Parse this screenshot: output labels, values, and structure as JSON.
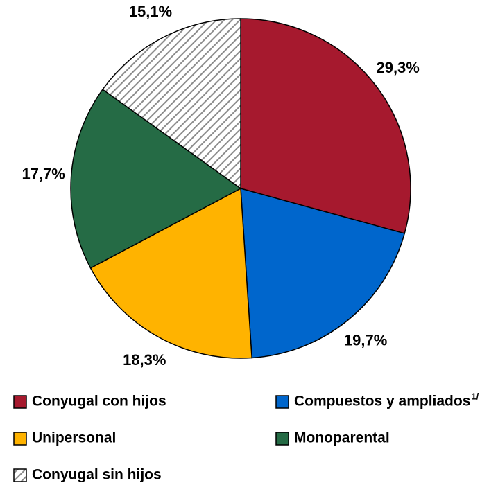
{
  "chart_data": {
    "type": "pie",
    "categories": [
      "Conyugal con hijos",
      "Compuestos y ampliados",
      "Unipersonal",
      "Monoparental",
      "Conyugal sin hijos"
    ],
    "category_superscripts": [
      null,
      "1/",
      null,
      null,
      null
    ],
    "values": [
      29.3,
      19.7,
      18.3,
      17.7,
      15.1
    ],
    "value_labels": [
      "29,3%",
      "19,7%",
      "18,3%",
      "17,7%",
      "15,1%"
    ],
    "colors": [
      "#a6192e",
      "#0066cc",
      "#ffb300",
      "#256b45",
      "#8c8c8c"
    ],
    "hatched": [
      false,
      false,
      false,
      false,
      true
    ]
  }
}
